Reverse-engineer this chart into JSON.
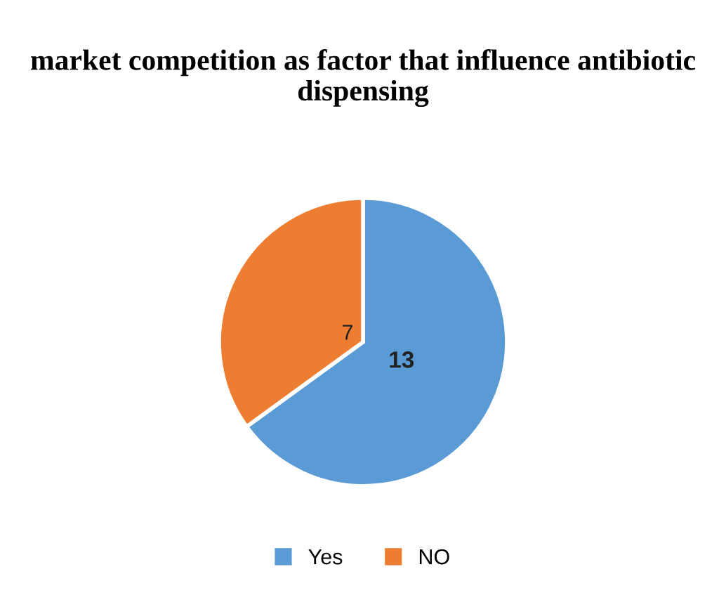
{
  "chart_data": {
    "type": "pie",
    "title": "market competition as factor that influence antibiotic dispensing",
    "categories": [
      "Yes",
      "NO"
    ],
    "values": [
      13,
      7
    ],
    "colors": [
      "#5b9bd5",
      "#ed7d31"
    ],
    "data_labels": true,
    "legend": "bottom"
  }
}
